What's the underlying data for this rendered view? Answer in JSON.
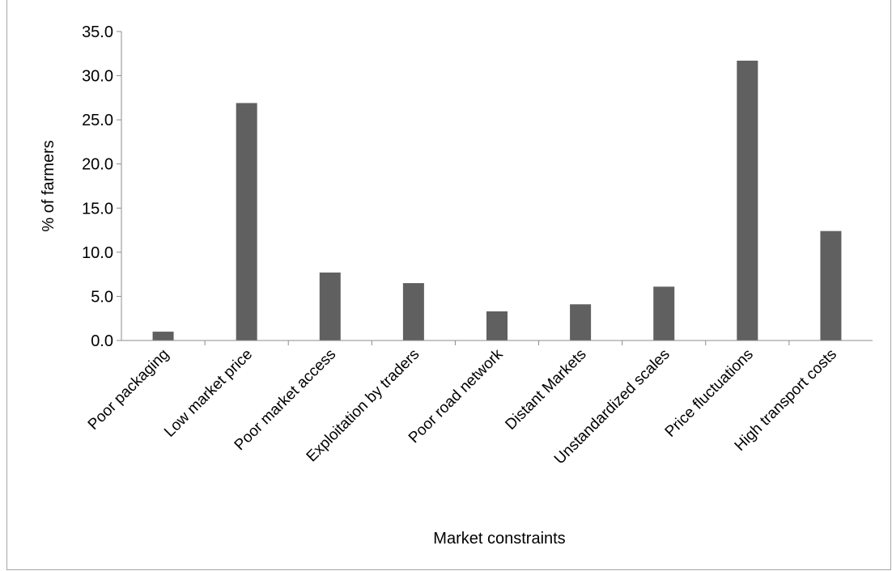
{
  "chart_data": {
    "type": "bar",
    "title": "",
    "xlabel": "Market constraints",
    "ylabel": "% of farmers",
    "ylim": [
      0,
      35
    ],
    "yticks": [
      "0.0",
      "5.0",
      "10.0",
      "15.0",
      "20.0",
      "25.0",
      "30.0",
      "35.0"
    ],
    "grid": false,
    "legend": "none",
    "bar_color": "#606060",
    "categories": [
      "Poor packaging",
      "Low market price",
      "Poor market access",
      "Exploitation by traders",
      "Poor road network",
      "Distant Markets",
      "Unstandardized scales",
      "Price fluctuations",
      "High transport costs"
    ],
    "values": [
      1.0,
      26.9,
      7.7,
      6.5,
      3.3,
      4.1,
      6.1,
      31.7,
      12.4
    ]
  }
}
